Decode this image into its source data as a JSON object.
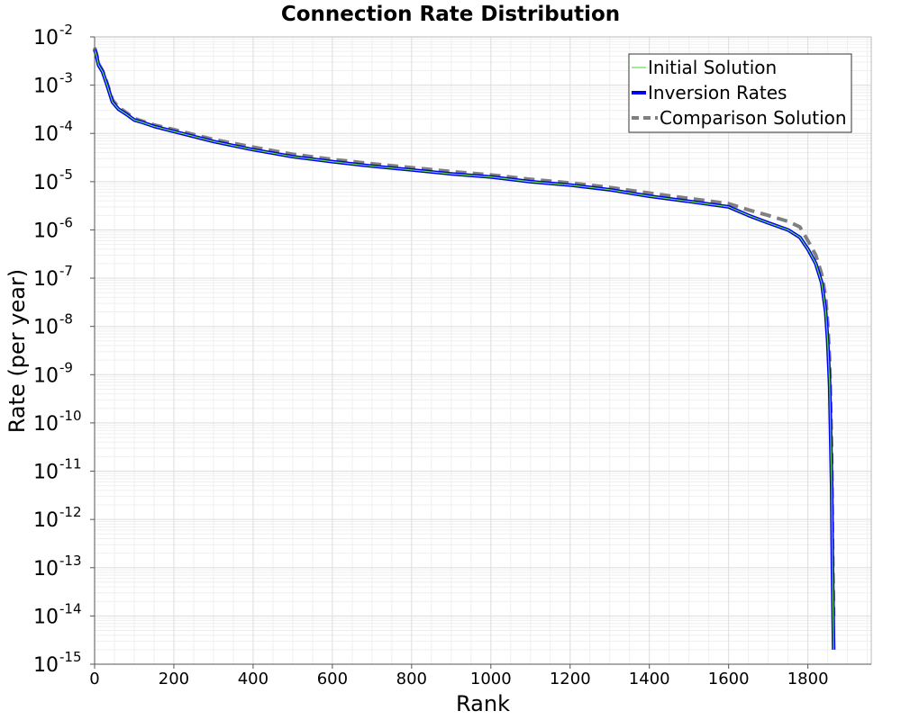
{
  "chart_data": {
    "type": "line",
    "title": "Connection Rate Distribution",
    "xlabel": "Rank",
    "ylabel": "Rate (per year)",
    "xlim": [
      0,
      1960
    ],
    "ylim": [
      1e-15,
      0.01
    ],
    "yscale": "log",
    "grid": true,
    "legend_position": "top-right",
    "xticks": [
      0,
      200,
      400,
      600,
      800,
      1000,
      1200,
      1400,
      1600,
      1800
    ],
    "yticks": [
      {
        "base": "10",
        "exp": "-2",
        "value": 0.01
      },
      {
        "base": "10",
        "exp": "-3",
        "value": 0.001
      },
      {
        "base": "10",
        "exp": "-4",
        "value": 0.0001
      },
      {
        "base": "10",
        "exp": "-5",
        "value": 1e-05
      },
      {
        "base": "10",
        "exp": "-6",
        "value": 1e-06
      },
      {
        "base": "10",
        "exp": "-7",
        "value": 1e-07
      },
      {
        "base": "10",
        "exp": "-8",
        "value": 1e-08
      },
      {
        "base": "10",
        "exp": "-9",
        "value": 1e-09
      },
      {
        "base": "10",
        "exp": "-10",
        "value": 1e-10
      },
      {
        "base": "10",
        "exp": "-11",
        "value": 1e-11
      },
      {
        "base": "10",
        "exp": "-12",
        "value": 1e-12
      },
      {
        "base": "10",
        "exp": "-13",
        "value": 1e-13
      },
      {
        "base": "10",
        "exp": "-14",
        "value": 1e-14
      },
      {
        "base": "10",
        "exp": "-15",
        "value": 1e-15
      }
    ],
    "series": [
      {
        "name": "Initial Solution",
        "color": "#66dd55",
        "style": "solid-thin",
        "x": [
          0,
          5,
          10,
          20,
          30,
          45,
          60,
          80,
          100,
          120,
          150,
          200,
          300,
          400,
          500,
          600,
          700,
          800,
          900,
          1000,
          1100,
          1200,
          1300,
          1400,
          1500,
          1600,
          1650,
          1700,
          1750,
          1780,
          1800,
          1820,
          1835,
          1845,
          1850,
          1855,
          1860,
          1862,
          1865
        ],
        "y": [
          0.0055,
          0.004,
          0.0026,
          0.0019,
          0.0011,
          0.00045,
          0.00032,
          0.00025,
          0.00019,
          0.00017,
          0.00014,
          0.00011,
          6.8e-05,
          4.6e-05,
          3.3e-05,
          2.6e-05,
          2.1e-05,
          1.75e-05,
          1.45e-05,
          1.25e-05,
          1e-05,
          8.5e-06,
          6.8e-06,
          5e-06,
          3.9e-06,
          3e-06,
          2e-06,
          1.4e-06,
          1e-06,
          7e-07,
          4e-07,
          2e-07,
          8e-08,
          2e-08,
          5e-09,
          6e-10,
          5e-12,
          1e-13,
          2e-15
        ]
      },
      {
        "name": "Inversion Rates",
        "color": "#0000ee",
        "style": "solid-thick",
        "x": [
          0,
          5,
          10,
          20,
          30,
          45,
          60,
          80,
          100,
          120,
          150,
          200,
          300,
          400,
          500,
          600,
          700,
          800,
          900,
          1000,
          1100,
          1200,
          1300,
          1400,
          1500,
          1600,
          1650,
          1700,
          1750,
          1780,
          1800,
          1820,
          1835,
          1845,
          1850,
          1855,
          1860,
          1862,
          1865
        ],
        "y": [
          0.0055,
          0.004,
          0.0026,
          0.0019,
          0.0011,
          0.00045,
          0.00032,
          0.00025,
          0.00019,
          0.00017,
          0.00014,
          0.00011,
          6.8e-05,
          4.6e-05,
          3.3e-05,
          2.6e-05,
          2.1e-05,
          1.75e-05,
          1.45e-05,
          1.25e-05,
          1e-05,
          8.5e-06,
          6.8e-06,
          5e-06,
          3.9e-06,
          3e-06,
          2e-06,
          1.4e-06,
          1e-06,
          7e-07,
          4e-07,
          2e-07,
          8e-08,
          2e-08,
          5e-09,
          6e-10,
          5e-12,
          1e-13,
          2e-15
        ]
      },
      {
        "name": "Comparison Solution",
        "color": "#808080",
        "style": "dashed",
        "x": [
          0,
          5,
          10,
          20,
          30,
          45,
          60,
          80,
          100,
          120,
          150,
          200,
          300,
          400,
          500,
          600,
          700,
          800,
          900,
          1000,
          1100,
          1200,
          1300,
          1400,
          1500,
          1600,
          1650,
          1700,
          1750,
          1780,
          1800,
          1820,
          1835,
          1845,
          1850,
          1855,
          1860,
          1862,
          1865
        ],
        "y": [
          0.006,
          0.0044,
          0.0028,
          0.002,
          0.0012,
          0.0005,
          0.00035,
          0.00027,
          0.000205,
          0.00018,
          0.00015,
          0.00012,
          7.5e-05,
          5.2e-05,
          3.7e-05,
          2.9e-05,
          2.35e-05,
          1.95e-05,
          1.62e-05,
          1.38e-05,
          1.12e-05,
          9.4e-06,
          7.6e-06,
          5.8e-06,
          4.5e-06,
          3.5e-06,
          2.6e-06,
          2e-06,
          1.5e-06,
          1.15e-06,
          6e-07,
          3e-07,
          1.2e-07,
          4e-08,
          1.2e-08,
          2e-09,
          3e-11,
          5e-13,
          1e-14
        ]
      }
    ]
  }
}
